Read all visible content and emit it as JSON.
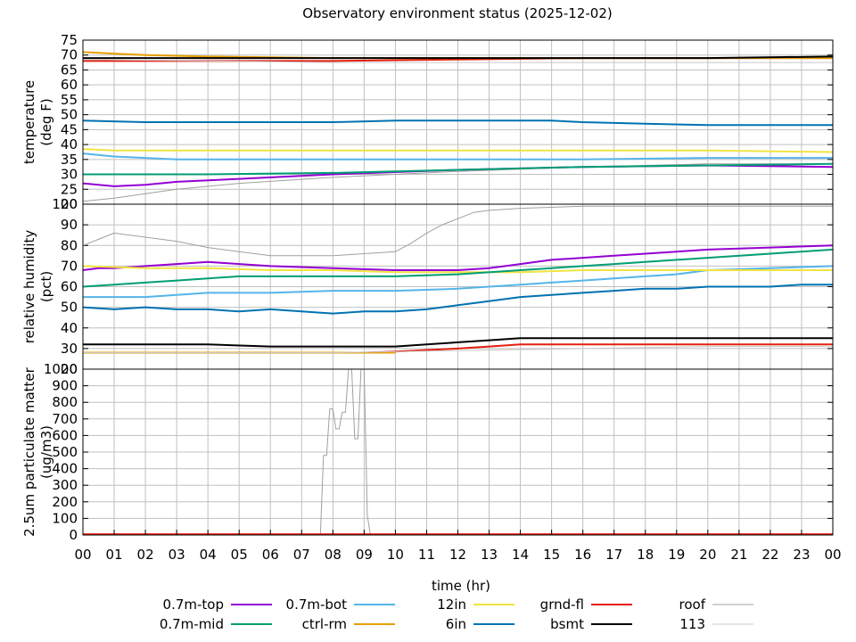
{
  "chart_data": {
    "title": "Observatory environment status (2025-12-02)",
    "xlabel": "time (hr)",
    "x_ticks": [
      "00",
      "01",
      "02",
      "03",
      "04",
      "05",
      "06",
      "07",
      "08",
      "09",
      "10",
      "11",
      "12",
      "13",
      "14",
      "15",
      "16",
      "17",
      "18",
      "19",
      "20",
      "21",
      "22",
      "23",
      "00"
    ],
    "xlim": [
      0,
      24
    ],
    "grid": true,
    "legend_position": "bottom",
    "legend": [
      {
        "name": "0.7m-top",
        "color": "#9400d3"
      },
      {
        "name": "0.7m-bot",
        "color": "#56b4e9"
      },
      {
        "name": "12in",
        "color": "#f0e442"
      },
      {
        "name": "grnd-fl",
        "color": "#e51e10"
      },
      {
        "name": "roof",
        "color": "#a0a0a0"
      },
      {
        "name": "0.7m-mid",
        "color": "#009e73"
      },
      {
        "name": "ctrl-rm",
        "color": "#e69f00"
      },
      {
        "name": "6in",
        "color": "#0072b2"
      },
      {
        "name": "bsmt",
        "color": "#000000"
      },
      {
        "name": "113",
        "color": "#c8c8c8"
      }
    ],
    "panels": [
      {
        "type": "line",
        "ylabel_line1": "temperature",
        "ylabel_line2": "(deg F)",
        "ylim": [
          20,
          75
        ],
        "y_ticks": [
          "20",
          "25",
          "30",
          "35",
          "40",
          "45",
          "50",
          "55",
          "60",
          "65",
          "70",
          "75"
        ],
        "series": [
          {
            "name": "0.7m-top",
            "color": "#9400d3",
            "x": [
              0,
              1,
              2,
              3,
              5,
              8,
              12,
              16,
              20,
              24
            ],
            "y": [
              27,
              26,
              26.5,
              27.5,
              28.5,
              30,
              31.5,
              32.5,
              33,
              32.5
            ]
          },
          {
            "name": "0.7m-bot",
            "color": "#56b4e9",
            "x": [
              0,
              1,
              2,
              3,
              5,
              8,
              12,
              16,
              20,
              24
            ],
            "y": [
              37,
              36,
              35.5,
              35,
              35,
              35,
              35,
              35,
              35.5,
              35.5
            ]
          },
          {
            "name": "12in",
            "color": "#f0e442",
            "x": [
              0,
              1,
              2,
              4,
              8,
              12,
              16,
              20,
              24
            ],
            "y": [
              38.5,
              38,
              38,
              38,
              38,
              38,
              38,
              38,
              37.5
            ]
          },
          {
            "name": "grnd-fl",
            "color": "#e51e10",
            "x": [
              0,
              4,
              8,
              12,
              16,
              20,
              24
            ],
            "y": [
              68,
              68,
              68,
              68.5,
              69,
              69,
              69
            ]
          },
          {
            "name": "roof",
            "color": "#a0a0a0",
            "x": [
              0,
              1,
              2,
              3,
              5,
              8,
              12,
              16,
              20,
              24
            ],
            "y": [
              21,
              22,
              23.5,
              25,
              27,
              29,
              31,
              32.5,
              33.5,
              33.5
            ]
          },
          {
            "name": "0.7m-mid",
            "color": "#009e73",
            "x": [
              0,
              1,
              2,
              4,
              8,
              12,
              16,
              20,
              24
            ],
            "y": [
              30,
              30,
              30,
              30,
              30.5,
              31.5,
              32.5,
              33,
              33.5
            ]
          },
          {
            "name": "ctrl-rm",
            "color": "#e69f00",
            "x": [
              0,
              1,
              2,
              4,
              8,
              12,
              16,
              20,
              24
            ],
            "y": [
              71,
              70.5,
              70,
              69.5,
              69,
              69,
              69,
              69,
              69
            ]
          },
          {
            "name": "6in",
            "color": "#0072b2",
            "x": [
              0,
              2,
              4,
              6,
              8,
              10,
              12,
              15,
              16,
              18,
              20,
              22,
              24
            ],
            "y": [
              48,
              47.5,
              47.5,
              47.5,
              47.5,
              48,
              48,
              48,
              47.5,
              47,
              46.5,
              46.5,
              46.5
            ]
          },
          {
            "name": "bsmt",
            "color": "#000000",
            "x": [
              0,
              4,
              8,
              12,
              16,
              20,
              24
            ],
            "y": [
              69,
              69,
              69,
              69,
              69,
              69,
              69.5
            ]
          },
          {
            "name": "113",
            "color": "#c8c8c8",
            "x": [
              0,
              4,
              8,
              12,
              16,
              20,
              24
            ],
            "y": [
              68.5,
              68,
              67.5,
              67.5,
              67.5,
              67.5,
              67.5
            ]
          }
        ]
      },
      {
        "type": "line",
        "ylabel_line1": "relative humidity",
        "ylabel_line2": "(pct)",
        "ylim": [
          20,
          100
        ],
        "y_ticks": [
          "20",
          "30",
          "40",
          "50",
          "60",
          "70",
          "80",
          "90",
          "100"
        ],
        "series": [
          {
            "name": "0.7m-top",
            "color": "#9400d3",
            "x": [
              0,
              0.5,
              1,
              2,
              3,
              4,
              5,
              6,
              8,
              10,
              12,
              13,
              14,
              15,
              16,
              17,
              18,
              19,
              20,
              22,
              24
            ],
            "y": [
              68,
              69,
              69,
              70,
              71,
              72,
              71,
              70,
              69,
              68,
              68,
              69,
              71,
              73,
              74,
              75,
              76,
              77,
              78,
              79,
              80
            ]
          },
          {
            "name": "0.7m-bot",
            "color": "#56b4e9",
            "x": [
              0,
              1,
              2,
              3,
              4,
              5,
              6,
              8,
              10,
              12,
              13,
              14,
              15,
              16,
              17,
              18,
              19,
              20,
              22,
              24
            ],
            "y": [
              55,
              55,
              55,
              56,
              57,
              57,
              57,
              58,
              58,
              59,
              60,
              61,
              62,
              63,
              64,
              65,
              66,
              68,
              69,
              70
            ]
          },
          {
            "name": "12in",
            "color": "#f0e442",
            "x": [
              0,
              2,
              4,
              6,
              8,
              10,
              12,
              14,
              16,
              18,
              20,
              22,
              24
            ],
            "y": [
              70,
              69,
              69,
              68,
              68,
              67,
              67,
              67,
              68,
              68,
              68,
              68,
              68
            ]
          },
          {
            "name": "grnd-fl",
            "color": "#e51e10",
            "x": [
              0,
              2,
              4,
              6,
              8,
              9,
              10,
              12,
              13,
              14,
              16,
              18,
              20,
              22,
              24
            ],
            "y": [
              28,
              28,
              28,
              28,
              28,
              28,
              28.5,
              30,
              31,
              32,
              32,
              32,
              32,
              32,
              32
            ]
          },
          {
            "name": "roof",
            "color": "#a0a0a0",
            "x": [
              0,
              1,
              2,
              3,
              4,
              5,
              6,
              7,
              8,
              9,
              10,
              10.5,
              11,
              11.5,
              12,
              12.5,
              13,
              14,
              16,
              18,
              20,
              24
            ],
            "y": [
              80,
              86,
              84,
              82,
              79,
              77,
              75,
              75,
              75,
              76,
              77,
              81,
              86,
              90,
              93,
              96,
              97,
              98,
              99,
              99,
              99,
              99
            ]
          },
          {
            "name": "0.7m-mid",
            "color": "#009e73",
            "x": [
              0,
              1,
              2,
              3,
              4,
              5,
              6,
              8,
              10,
              12,
              14,
              15,
              16,
              17,
              18,
              19,
              20,
              22,
              24
            ],
            "y": [
              60,
              61,
              62,
              63,
              64,
              65,
              65,
              65,
              65,
              66,
              68,
              69,
              70,
              71,
              72,
              73,
              74,
              76,
              78
            ]
          },
          {
            "name": "ctrl-rm",
            "color": "#e69f00",
            "x": [
              0,
              2,
              4,
              6,
              8,
              9,
              10
            ],
            "y": [
              28,
              28,
              28,
              28,
              28,
              28,
              28
            ]
          },
          {
            "name": "6in",
            "color": "#0072b2",
            "x": [
              0,
              1,
              2,
              3,
              4,
              5,
              6,
              7,
              8,
              9,
              10,
              11,
              12,
              13,
              14,
              15,
              16,
              17,
              18,
              19,
              20,
              21,
              22,
              23,
              24
            ],
            "y": [
              50,
              49,
              50,
              49,
              49,
              48,
              49,
              48,
              47,
              48,
              48,
              49,
              51,
              53,
              55,
              56,
              57,
              58,
              59,
              59,
              60,
              60,
              60,
              61,
              61
            ]
          },
          {
            "name": "bsmt",
            "color": "#000000",
            "x": [
              0,
              2,
              4,
              6,
              8,
              10,
              11,
              12,
              13,
              14,
              16,
              18,
              20,
              22,
              24
            ],
            "y": [
              32,
              32,
              32,
              31,
              31,
              31,
              32,
              33,
              34,
              35,
              35,
              35,
              35,
              35,
              35
            ]
          },
          {
            "name": "113",
            "color": "#c8c8c8",
            "x": [
              0,
              4,
              8,
              12,
              16,
              20,
              24
            ],
            "y": [
              28,
              28,
              28,
              29,
              30,
              31,
              31
            ]
          }
        ]
      },
      {
        "type": "line",
        "ylabel_line1": "2.5um particulate matter",
        "ylabel_line2": "(ug/m3)",
        "ylim": [
          0,
          1000
        ],
        "y_ticks": [
          "0",
          "100",
          "200",
          "300",
          "400",
          "500",
          "600",
          "700",
          "800",
          "900",
          "1000"
        ],
        "series": [
          {
            "name": "roof",
            "color": "#a0a0a0",
            "x": [
              0,
              7.6,
              7.7,
              7.8,
              7.9,
              8.0,
              8.1,
              8.2,
              8.3,
              8.4,
              8.5,
              8.6,
              8.7,
              8.8,
              8.9,
              9.0,
              9.1,
              9.2,
              10,
              24
            ],
            "y": [
              0,
              0,
              480,
              480,
              760,
              760,
              640,
              640,
              740,
              740,
              1000,
              1000,
              580,
              580,
              1000,
              1000,
              120,
              0,
              0,
              0
            ]
          },
          {
            "name": "grnd-fl",
            "color": "#e51e10",
            "x": [
              0,
              4,
              8,
              12,
              16,
              20,
              24
            ],
            "y": [
              5,
              5,
              5,
              5,
              5,
              5,
              5
            ]
          }
        ]
      }
    ]
  }
}
